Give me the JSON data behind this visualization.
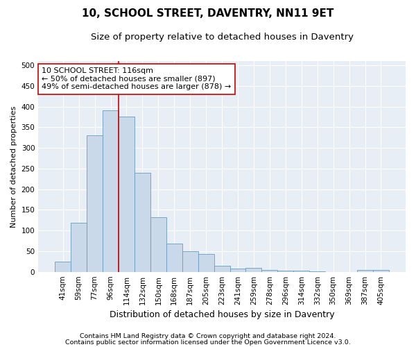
{
  "title1": "10, SCHOOL STREET, DAVENTRY, NN11 9ET",
  "title2": "Size of property relative to detached houses in Daventry",
  "xlabel": "Distribution of detached houses by size in Daventry",
  "ylabel": "Number of detached properties",
  "categories": [
    "41sqm",
    "59sqm",
    "77sqm",
    "96sqm",
    "114sqm",
    "132sqm",
    "150sqm",
    "168sqm",
    "187sqm",
    "205sqm",
    "223sqm",
    "241sqm",
    "259sqm",
    "278sqm",
    "296sqm",
    "314sqm",
    "332sqm",
    "350sqm",
    "369sqm",
    "387sqm",
    "405sqm"
  ],
  "values": [
    25,
    118,
    330,
    390,
    375,
    240,
    132,
    68,
    50,
    43,
    15,
    8,
    10,
    5,
    3,
    2,
    1,
    0,
    0,
    5,
    5
  ],
  "bar_color": "#c9d9ea",
  "bar_edge_color": "#6a9cbf",
  "bar_edge_width": 0.6,
  "vline_x_index": 4,
  "vline_color": "#cc0000",
  "annotation_text": "10 SCHOOL STREET: 116sqm\n← 50% of detached houses are smaller (897)\n49% of semi-detached houses are larger (878) →",
  "annotation_box_color": "#ffffff",
  "annotation_box_edge": "#cc0000",
  "ylim": [
    0,
    510
  ],
  "yticks": [
    0,
    50,
    100,
    150,
    200,
    250,
    300,
    350,
    400,
    450,
    500
  ],
  "footnote1": "Contains HM Land Registry data © Crown copyright and database right 2024.",
  "footnote2": "Contains public sector information licensed under the Open Government Licence v3.0.",
  "fig_bg_color": "#ffffff",
  "axes_bg_color": "#e8eef5",
  "grid_color": "#ffffff",
  "title1_fontsize": 11,
  "title2_fontsize": 9.5,
  "xlabel_fontsize": 9,
  "ylabel_fontsize": 8,
  "tick_fontsize": 7.5,
  "annotation_fontsize": 8,
  "footnote_fontsize": 6.8
}
